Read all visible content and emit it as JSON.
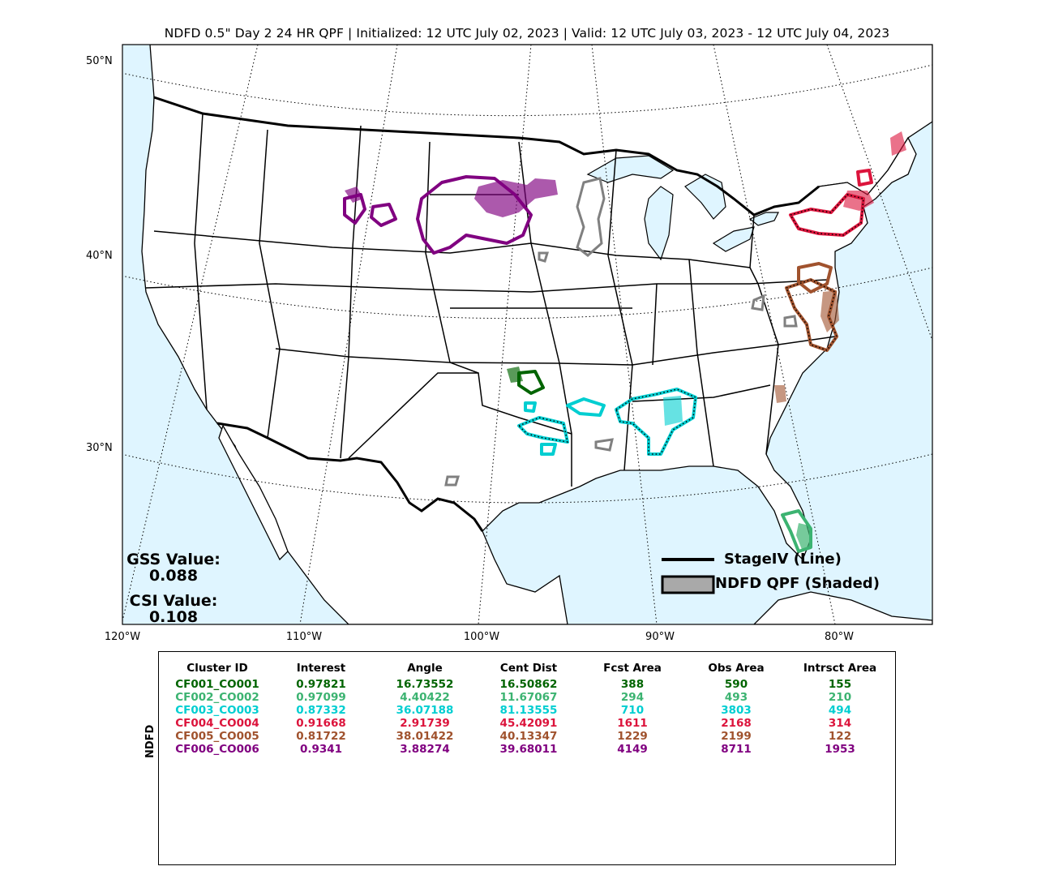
{
  "title": "NDFD 0.5\" Day 2 24 HR QPF | Initialized: 12 UTC July 02, 2023 | Valid: 12 UTC July 03, 2023 - 12 UTC July 04, 2023",
  "lat_labels": [
    "50°N",
    "40°N",
    "30°N"
  ],
  "lon_labels": [
    "120°W",
    "110°W",
    "100°W",
    "90°W",
    "80°W"
  ],
  "scores": {
    "gss_label": "GSS Value:",
    "gss_value": "0.088",
    "csi_label": "CSI Value:",
    "csi_value": "0.108"
  },
  "legend": {
    "line_label": "StageIV (Line)",
    "shaded_label": "NDFD QPF (Shaded)"
  },
  "colors": {
    "water": "#dff5ff",
    "land": "#ffffff",
    "cf001": "#006400",
    "cf002": "#3cb371",
    "cf003": "#00ced1",
    "cf004": "#dc143c",
    "cf005": "#a0522d",
    "cf006": "#800080",
    "unmatched": "#808080"
  },
  "table": {
    "ylabel": "NDFD",
    "headers": [
      "Cluster ID",
      "Interest",
      "Angle",
      "Cent Dist",
      "Fcst Area",
      "Obs Area",
      "Intrsct Area"
    ],
    "rows": [
      {
        "color": "#006400",
        "cells": [
          "CF001_CO001",
          "0.97821",
          "16.73552",
          "16.50862",
          "388",
          "590",
          "155"
        ]
      },
      {
        "color": "#3cb371",
        "cells": [
          "CF002_CO002",
          "0.97099",
          "4.40422",
          "11.67067",
          "294",
          "493",
          "210"
        ]
      },
      {
        "color": "#00ced1",
        "cells": [
          "CF003_CO003",
          "0.87332",
          "36.07188",
          "81.13555",
          "710",
          "3803",
          "494"
        ]
      },
      {
        "color": "#dc143c",
        "cells": [
          "CF004_CO004",
          "0.91668",
          "2.91739",
          "45.42091",
          "1611",
          "2168",
          "314"
        ]
      },
      {
        "color": "#a0522d",
        "cells": [
          "CF005_CO005",
          "0.81722",
          "38.01422",
          "40.13347",
          "1229",
          "2199",
          "122"
        ]
      },
      {
        "color": "#800080",
        "cells": [
          "CF006_CO006",
          "0.9341",
          "3.88274",
          "39.68011",
          "4149",
          "8711",
          "1953"
        ]
      }
    ]
  }
}
